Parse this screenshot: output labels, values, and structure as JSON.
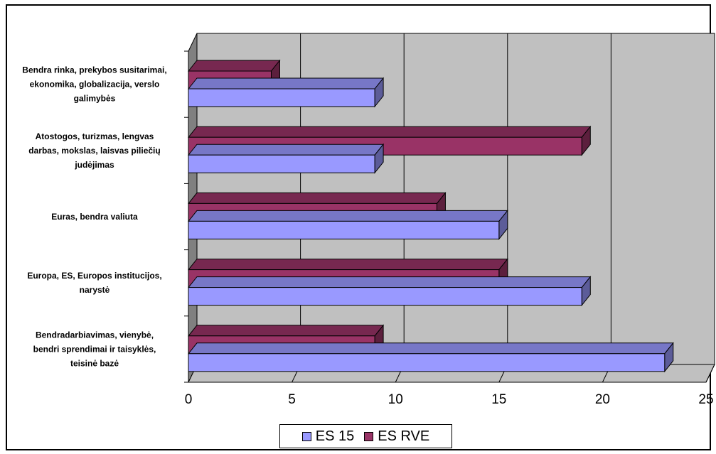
{
  "chart_data": {
    "type": "bar",
    "orientation": "horizontal",
    "style": "3d",
    "categories": [
      "Bendra rinka, prekybos susitarimai, ekonomika, globalizacija, verslo galimybės",
      "Atostogos, turizmas, lengvas darbas, mokslas, laisvas piliečių judėjimas",
      "Euras, bendra valiuta",
      "Europa, ES, Europos institucijos, narystė",
      "Bendradarbiavimas, vienybė, bendri sprendimai ir taisyklės, teisinė bazė"
    ],
    "category_lines": [
      [
        "Bendra rinka, prekybos susitarimai,",
        "ekonomika, globalizacija, verslo",
        "galimybės"
      ],
      [
        "Atostogos, turizmas, lengvas",
        "darbas, mokslas, laisvas piliečių",
        "judėjimas"
      ],
      [
        "Euras, bendra valiuta"
      ],
      [
        "Europa, ES, Europos institucijos,",
        "narystė"
      ],
      [
        "Bendradarbiavimas, vienybė,",
        "bendri sprendimai ir taisyklės,",
        "teisinė bazė"
      ]
    ],
    "series": [
      {
        "name": "ES 15",
        "values": [
          9,
          9,
          15,
          19,
          23
        ],
        "color": "#9999ff"
      },
      {
        "name": "ES RVE",
        "values": [
          4,
          19,
          12,
          15,
          9
        ],
        "color": "#993366"
      }
    ],
    "xlim": [
      0,
      25
    ],
    "xticks": [
      "0",
      "5",
      "10",
      "15",
      "20",
      "25"
    ],
    "grid": true,
    "legend_position": "bottom",
    "wall_color": "#c0c0c0"
  }
}
